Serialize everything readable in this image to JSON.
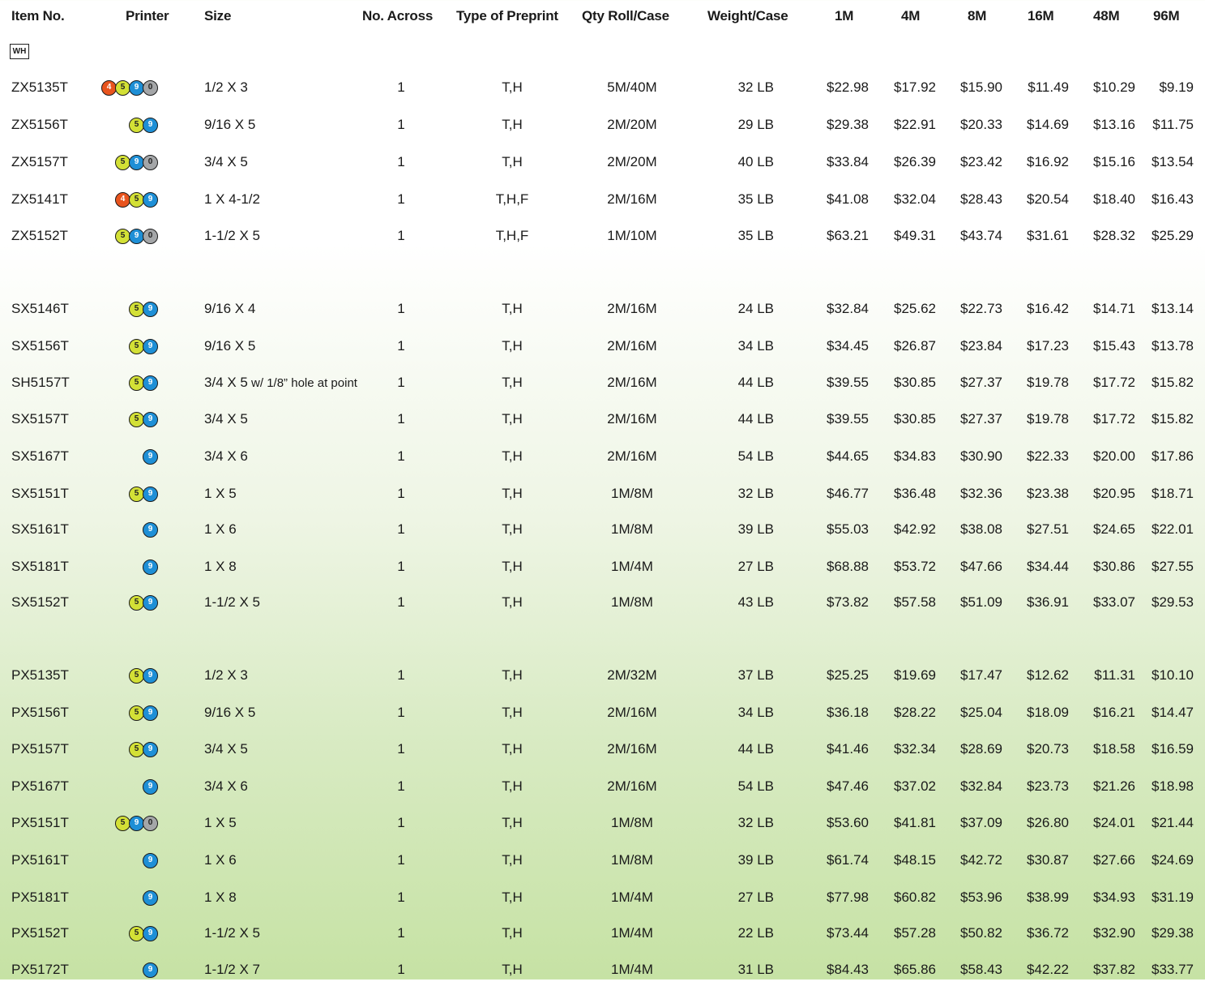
{
  "headers": {
    "item": "Item No.",
    "printer": "Printer",
    "size": "Size",
    "across": "No. Across",
    "type": "Type of Preprint",
    "qty": "Qty Roll/Case",
    "weight": "Weight/Case",
    "p1": "1M",
    "p4": "4M",
    "p8": "8M",
    "p16": "16M",
    "p48": "48M",
    "p96": "96M"
  },
  "badge": "WH",
  "printer_colors": {
    "4": "#e8541e",
    "5": "#d3e036",
    "9": "#1e8fd6",
    "0": "#a4a6a8"
  },
  "rows": [
    {
      "item": "ZX5135T",
      "printers": [
        "4",
        "5",
        "9",
        "0"
      ],
      "size": "1/2 X 3",
      "across": "1",
      "type": "T,H",
      "qty": "5M/40M",
      "weight": "32 LB",
      "prices": [
        "$22.98",
        "$17.92",
        "$15.90",
        "$11.49",
        "$10.29",
        "$9.19"
      ]
    },
    {
      "item": "ZX5156T",
      "printers": [
        "5",
        "9"
      ],
      "size": "9/16 X 5",
      "across": "1",
      "type": "T,H",
      "qty": "2M/20M",
      "weight": "29 LB",
      "prices": [
        "$29.38",
        "$22.91",
        "$20.33",
        "$14.69",
        "$13.16",
        "$11.75"
      ]
    },
    {
      "item": "ZX5157T",
      "printers": [
        "5",
        "9",
        "0"
      ],
      "size": "3/4 X 5",
      "across": "1",
      "type": "T,H",
      "qty": "2M/20M",
      "weight": "40 LB",
      "prices": [
        "$33.84",
        "$26.39",
        "$23.42",
        "$16.92",
        "$15.16",
        "$13.54"
      ]
    },
    {
      "item": "ZX5141T",
      "printers": [
        "4",
        "5",
        "9"
      ],
      "size": "1 X 4-1/2",
      "across": "1",
      "type": "T,H,F",
      "qty": "2M/16M",
      "weight": "35 LB",
      "prices": [
        "$41.08",
        "$32.04",
        "$28.43",
        "$20.54",
        "$18.40",
        "$16.43"
      ]
    },
    {
      "item": "ZX5152T",
      "printers": [
        "5",
        "9",
        "0"
      ],
      "size": "1-1/2 X 5",
      "across": "1",
      "type": "T,H,F",
      "qty": "1M/10M",
      "weight": "35 LB",
      "prices": [
        "$63.21",
        "$49.31",
        "$43.74",
        "$31.61",
        "$28.32",
        "$25.29"
      ]
    },
    {
      "item": "SX5146T",
      "printers": [
        "5",
        "9"
      ],
      "size": "9/16 X 4",
      "across": "1",
      "type": "T,H",
      "qty": "2M/16M",
      "weight": "24 LB",
      "prices": [
        "$32.84",
        "$25.62",
        "$22.73",
        "$16.42",
        "$14.71",
        "$13.14"
      ]
    },
    {
      "item": "SX5156T",
      "printers": [
        "5",
        "9"
      ],
      "size": "9/16 X 5",
      "across": "1",
      "type": "T,H",
      "qty": "2M/16M",
      "weight": "34 LB",
      "prices": [
        "$34.45",
        "$26.87",
        "$23.84",
        "$17.23",
        "$15.43",
        "$13.78"
      ]
    },
    {
      "item": "SH5157T",
      "printers": [
        "5",
        "9"
      ],
      "size": "3/4 X 5",
      "size_note": " w/ 1/8” hole at point",
      "across": "1",
      "type": "T,H",
      "qty": "2M/16M",
      "weight": "44 LB",
      "prices": [
        "$39.55",
        "$30.85",
        "$27.37",
        "$19.78",
        "$17.72",
        "$15.82"
      ]
    },
    {
      "item": "SX5157T",
      "printers": [
        "5",
        "9"
      ],
      "size": "3/4 X 5",
      "across": "1",
      "type": "T,H",
      "qty": "2M/16M",
      "weight": "44 LB",
      "prices": [
        "$39.55",
        "$30.85",
        "$27.37",
        "$19.78",
        "$17.72",
        "$15.82"
      ]
    },
    {
      "item": "SX5167T",
      "printers": [
        "9"
      ],
      "size": "3/4 X 6",
      "across": "1",
      "type": "T,H",
      "qty": "2M/16M",
      "weight": "54 LB",
      "prices": [
        "$44.65",
        "$34.83",
        "$30.90",
        "$22.33",
        "$20.00",
        "$17.86"
      ]
    },
    {
      "item": "SX5151T",
      "printers": [
        "5",
        "9"
      ],
      "size": "1 X 5",
      "across": "1",
      "type": "T,H",
      "qty": "1M/8M",
      "weight": "32 LB",
      "prices": [
        "$46.77",
        "$36.48",
        "$32.36",
        "$23.38",
        "$20.95",
        "$18.71"
      ]
    },
    {
      "item": "SX5161T",
      "printers": [
        "9"
      ],
      "size": "1 X 6",
      "across": "1",
      "type": "T,H",
      "qty": "1M/8M",
      "weight": "39 LB",
      "prices": [
        "$55.03",
        "$42.92",
        "$38.08",
        "$27.51",
        "$24.65",
        "$22.01"
      ]
    },
    {
      "item": "SX5181T",
      "printers": [
        "9"
      ],
      "size": "1 X 8",
      "across": "1",
      "type": "T,H",
      "qty": "1M/4M",
      "weight": "27 LB",
      "prices": [
        "$68.88",
        "$53.72",
        "$47.66",
        "$34.44",
        "$30.86",
        "$27.55"
      ]
    },
    {
      "item": "SX5152T",
      "printers": [
        "5",
        "9"
      ],
      "size": "1-1/2 X 5",
      "across": "1",
      "type": "T,H",
      "qty": "1M/8M",
      "weight": "43 LB",
      "prices": [
        "$73.82",
        "$57.58",
        "$51.09",
        "$36.91",
        "$33.07",
        "$29.53"
      ]
    },
    {
      "item": "PX5135T",
      "printers": [
        "5",
        "9"
      ],
      "size": "1/2 X 3",
      "across": "1",
      "type": "T,H",
      "qty": "2M/32M",
      "weight": "37 LB",
      "prices": [
        "$25.25",
        "$19.69",
        "$17.47",
        "$12.62",
        "$11.31",
        "$10.10"
      ]
    },
    {
      "item": "PX5156T",
      "printers": [
        "5",
        "9"
      ],
      "size": "9/16 X 5",
      "across": "1",
      "type": "T,H",
      "qty": "2M/16M",
      "weight": "34 LB",
      "prices": [
        "$36.18",
        "$28.22",
        "$25.04",
        "$18.09",
        "$16.21",
        "$14.47"
      ]
    },
    {
      "item": "PX5157T",
      "printers": [
        "5",
        "9"
      ],
      "size": "3/4 X 5",
      "across": "1",
      "type": "T,H",
      "qty": "2M/16M",
      "weight": "44 LB",
      "prices": [
        "$41.46",
        "$32.34",
        "$28.69",
        "$20.73",
        "$18.58",
        "$16.59"
      ]
    },
    {
      "item": "PX5167T",
      "printers": [
        "9"
      ],
      "size": "3/4 X 6",
      "across": "1",
      "type": "T,H",
      "qty": "2M/16M",
      "weight": "54 LB",
      "prices": [
        "$47.46",
        "$37.02",
        "$32.84",
        "$23.73",
        "$21.26",
        "$18.98"
      ]
    },
    {
      "item": "PX5151T",
      "printers": [
        "5",
        "9",
        "0"
      ],
      "size": "1 X 5",
      "across": "1",
      "type": "T,H",
      "qty": "1M/8M",
      "weight": "32 LB",
      "prices": [
        "$53.60",
        "$41.81",
        "$37.09",
        "$26.80",
        "$24.01",
        "$21.44"
      ]
    },
    {
      "item": "PX5161T",
      "printers": [
        "9"
      ],
      "size": "1 X 6",
      "across": "1",
      "type": "T,H",
      "qty": "1M/8M",
      "weight": "39 LB",
      "prices": [
        "$61.74",
        "$48.15",
        "$42.72",
        "$30.87",
        "$27.66",
        "$24.69"
      ]
    },
    {
      "item": "PX5181T",
      "printers": [
        "9"
      ],
      "size": "1 X 8",
      "across": "1",
      "type": "T,H",
      "qty": "1M/4M",
      "weight": "27 LB",
      "prices": [
        "$77.98",
        "$60.82",
        "$53.96",
        "$38.99",
        "$34.93",
        "$31.19"
      ]
    },
    {
      "item": "PX5152T",
      "printers": [
        "5",
        "9"
      ],
      "size": "1-1/2 X 5",
      "across": "1",
      "type": "T,H",
      "qty": "1M/4M",
      "weight": "22 LB",
      "prices": [
        "$73.44",
        "$57.28",
        "$50.82",
        "$36.72",
        "$32.90",
        "$29.38"
      ]
    },
    {
      "item": "PX5172T",
      "printers": [
        "9"
      ],
      "size": "1-1/2 X 7",
      "across": "1",
      "type": "T,H",
      "qty": "1M/4M",
      "weight": "31 LB",
      "prices": [
        "$84.43",
        "$65.86",
        "$58.43",
        "$42.22",
        "$37.82",
        "$33.77"
      ]
    }
  ]
}
